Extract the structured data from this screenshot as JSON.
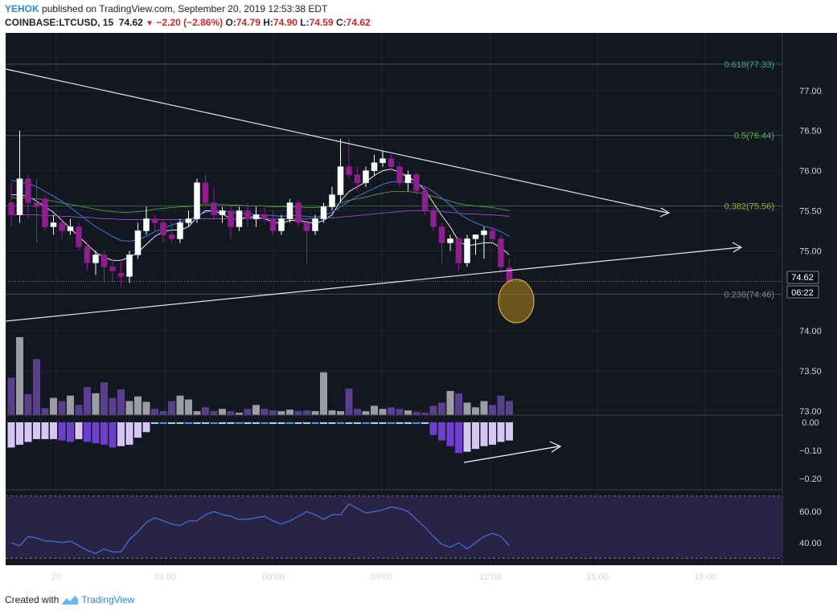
{
  "header": {
    "author": "YEHOK",
    "published_text": "published on TradingView.com, September 20, 2019 12:53:38 EDT",
    "symbol": "COINBASE:LTCUSD, 15",
    "last": "74.62",
    "change": "−2.20 (−2.86%)",
    "o_label": "O:",
    "o_value": "74.79",
    "h_label": "H:",
    "h_value": "74.90",
    "l_label": "L:",
    "l_value": "74.59",
    "c_label": "C:",
    "c_value": "74.62"
  },
  "footer": {
    "created_with": "Created with",
    "brand": "TradingView"
  },
  "colors": {
    "background": "#131722",
    "candle_up": "#ffffff",
    "candle_down": "#8e1f8c",
    "volume_up": "#9c9ca4",
    "volume_down": "#5a3f8c",
    "macd_pos": "#3d9aff",
    "macd_pos_light": "#a8d2ff",
    "macd_neg": "#6d3fcf",
    "macd_neg_light": "#d6c8f2",
    "rsi_line": "#3d78d8",
    "rsi_band": "#2b2248",
    "fib_line": "#3c5a44",
    "fib_0618": "#3fa58a",
    "fib_05": "#56b548",
    "fib_0382": "#98b030",
    "fib_0236": "#858585",
    "highlight": "#e0a93a"
  },
  "chart_data": {
    "type": "candlestick",
    "price_axis": {
      "ticks": [
        "77.00",
        "76.50",
        "76.00",
        "75.50",
        "75.00",
        "74.00",
        "73.50",
        "73.00"
      ],
      "range": [
        72.95,
        77.72
      ]
    },
    "time_axis": [
      "20",
      "03:00",
      "06:00",
      "09:00",
      "12:00",
      "15:00",
      "18:00"
    ],
    "last_price_label": "74.62",
    "countdown_label": "06:22",
    "fib_levels": [
      {
        "label": "0.618(77.33)",
        "value": 77.33,
        "color_key": "fib_0618"
      },
      {
        "label": "0.5(76.44)",
        "value": 76.44,
        "color_key": "fib_05"
      },
      {
        "label": "0.382(75.56)",
        "value": 75.56,
        "color_key": "fib_0382"
      },
      {
        "label": "0.236(74.46)",
        "value": 74.46,
        "color_key": "fib_0236"
      }
    ],
    "candles": [
      {
        "o": 75.6,
        "h": 75.85,
        "l": 75.3,
        "c": 75.45
      },
      {
        "o": 75.45,
        "h": 76.5,
        "l": 75.35,
        "c": 75.9
      },
      {
        "o": 75.9,
        "h": 75.95,
        "l": 75.4,
        "c": 75.6
      },
      {
        "o": 75.6,
        "h": 75.9,
        "l": 75.1,
        "c": 75.55
      },
      {
        "o": 75.65,
        "h": 75.7,
        "l": 75.25,
        "c": 75.3
      },
      {
        "o": 75.3,
        "h": 75.45,
        "l": 75.2,
        "c": 75.35
      },
      {
        "o": 75.35,
        "h": 75.4,
        "l": 75.15,
        "c": 75.25
      },
      {
        "o": 75.25,
        "h": 75.4,
        "l": 75.2,
        "c": 75.3
      },
      {
        "o": 75.3,
        "h": 75.35,
        "l": 75.0,
        "c": 75.05
      },
      {
        "o": 75.05,
        "h": 75.1,
        "l": 74.75,
        "c": 74.85
      },
      {
        "o": 74.85,
        "h": 75.0,
        "l": 74.7,
        "c": 74.95
      },
      {
        "o": 74.95,
        "h": 75.0,
        "l": 74.6,
        "c": 74.8
      },
      {
        "o": 74.8,
        "h": 74.9,
        "l": 74.6,
        "c": 74.75
      },
      {
        "o": 74.72,
        "h": 74.9,
        "l": 74.55,
        "c": 74.68
      },
      {
        "o": 74.68,
        "h": 75.0,
        "l": 74.6,
        "c": 74.95
      },
      {
        "o": 74.95,
        "h": 75.35,
        "l": 74.9,
        "c": 75.25
      },
      {
        "o": 75.25,
        "h": 75.55,
        "l": 75.2,
        "c": 75.4
      },
      {
        "o": 75.4,
        "h": 75.45,
        "l": 75.25,
        "c": 75.35
      },
      {
        "o": 75.35,
        "h": 75.4,
        "l": 75.1,
        "c": 75.2
      },
      {
        "o": 75.2,
        "h": 75.35,
        "l": 75.1,
        "c": 75.15
      },
      {
        "o": 75.15,
        "h": 75.4,
        "l": 75.1,
        "c": 75.35
      },
      {
        "o": 75.35,
        "h": 75.5,
        "l": 75.3,
        "c": 75.4
      },
      {
        "o": 75.4,
        "h": 75.9,
        "l": 75.35,
        "c": 75.85
      },
      {
        "o": 75.85,
        "h": 75.95,
        "l": 75.55,
        "c": 75.6
      },
      {
        "o": 75.6,
        "h": 75.8,
        "l": 75.4,
        "c": 75.45
      },
      {
        "o": 75.45,
        "h": 75.55,
        "l": 75.35,
        "c": 75.5
      },
      {
        "o": 75.5,
        "h": 75.55,
        "l": 75.15,
        "c": 75.3
      },
      {
        "o": 75.3,
        "h": 75.55,
        "l": 75.25,
        "c": 75.5
      },
      {
        "o": 75.5,
        "h": 75.6,
        "l": 75.3,
        "c": 75.4
      },
      {
        "o": 75.4,
        "h": 75.55,
        "l": 75.3,
        "c": 75.45
      },
      {
        "o": 75.45,
        "h": 75.55,
        "l": 75.35,
        "c": 75.4
      },
      {
        "o": 75.4,
        "h": 75.5,
        "l": 75.2,
        "c": 75.25
      },
      {
        "o": 75.25,
        "h": 75.45,
        "l": 75.2,
        "c": 75.4
      },
      {
        "o": 75.4,
        "h": 75.65,
        "l": 75.35,
        "c": 75.6
      },
      {
        "o": 75.6,
        "h": 75.65,
        "l": 75.3,
        "c": 75.35
      },
      {
        "o": 75.35,
        "h": 75.4,
        "l": 74.85,
        "c": 75.25
      },
      {
        "o": 75.25,
        "h": 75.45,
        "l": 75.2,
        "c": 75.4
      },
      {
        "o": 75.4,
        "h": 75.6,
        "l": 75.35,
        "c": 75.55
      },
      {
        "o": 75.55,
        "h": 75.8,
        "l": 75.5,
        "c": 75.7
      },
      {
        "o": 75.7,
        "h": 76.4,
        "l": 75.6,
        "c": 76.05
      },
      {
        "o": 76.05,
        "h": 76.4,
        "l": 75.9,
        "c": 75.95
      },
      {
        "o": 75.95,
        "h": 76.05,
        "l": 75.75,
        "c": 75.85
      },
      {
        "o": 75.85,
        "h": 76.05,
        "l": 75.8,
        "c": 76.0
      },
      {
        "o": 76.0,
        "h": 76.2,
        "l": 75.95,
        "c": 76.1
      },
      {
        "o": 76.1,
        "h": 76.25,
        "l": 76.05,
        "c": 76.15
      },
      {
        "o": 76.15,
        "h": 76.2,
        "l": 76.0,
        "c": 76.05
      },
      {
        "o": 76.05,
        "h": 76.1,
        "l": 75.8,
        "c": 75.85
      },
      {
        "o": 75.85,
        "h": 76.0,
        "l": 75.75,
        "c": 75.95
      },
      {
        "o": 75.95,
        "h": 75.98,
        "l": 75.7,
        "c": 75.75
      },
      {
        "o": 75.75,
        "h": 75.8,
        "l": 75.45,
        "c": 75.5
      },
      {
        "o": 75.5,
        "h": 75.55,
        "l": 75.25,
        "c": 75.3
      },
      {
        "o": 75.3,
        "h": 75.35,
        "l": 74.85,
        "c": 75.1
      },
      {
        "o": 75.1,
        "h": 75.2,
        "l": 75.0,
        "c": 75.15
      },
      {
        "o": 75.15,
        "h": 75.18,
        "l": 74.75,
        "c": 74.85
      },
      {
        "o": 74.85,
        "h": 75.2,
        "l": 74.8,
        "c": 75.15
      },
      {
        "o": 75.15,
        "h": 75.2,
        "l": 74.95,
        "c": 75.2
      },
      {
        "o": 75.2,
        "h": 75.3,
        "l": 74.9,
        "c": 75.25
      },
      {
        "o": 75.25,
        "h": 75.3,
        "l": 75.1,
        "c": 75.15
      },
      {
        "o": 75.15,
        "h": 75.2,
        "l": 74.75,
        "c": 74.8
      },
      {
        "o": 74.79,
        "h": 74.9,
        "l": 74.59,
        "c": 74.62
      }
    ],
    "moving_averages": [
      {
        "color": "#e8e8e8",
        "values": [
          75.7,
          75.7,
          75.68,
          75.62,
          75.55,
          75.48,
          75.38,
          75.28,
          75.18,
          75.08,
          74.98,
          74.92,
          74.88,
          74.88,
          74.92,
          74.98,
          75.08,
          75.18,
          75.24,
          75.26,
          75.26,
          75.3,
          75.42,
          75.5,
          75.5,
          75.46,
          75.4,
          75.4,
          75.42,
          75.42,
          75.4,
          75.36,
          75.34,
          75.38,
          75.38,
          75.36,
          75.34,
          75.38,
          75.45,
          75.62,
          75.74,
          75.8,
          75.86,
          75.94,
          76.0,
          76.02,
          75.98,
          75.92,
          75.86,
          75.76,
          75.6,
          75.44,
          75.3,
          75.12,
          75.06,
          75.08,
          75.1,
          75.1,
          75.04,
          74.95
        ]
      },
      {
        "color": "#3d78d8",
        "values": [
          75.88,
          75.86,
          75.84,
          75.8,
          75.74,
          75.68,
          75.62,
          75.54,
          75.46,
          75.38,
          75.3,
          75.24,
          75.18,
          75.13,
          75.12,
          75.14,
          75.18,
          75.24,
          75.28,
          75.32,
          75.36,
          75.38,
          75.44,
          75.48,
          75.5,
          75.5,
          75.48,
          75.47,
          75.46,
          75.45,
          75.45,
          75.44,
          75.43,
          75.44,
          75.44,
          75.43,
          75.42,
          75.44,
          75.48,
          75.55,
          75.62,
          75.68,
          75.73,
          75.78,
          75.83,
          75.86,
          75.87,
          75.86,
          75.84,
          75.8,
          75.74,
          75.66,
          75.57,
          75.47,
          75.4,
          75.35,
          75.31,
          75.28,
          75.24,
          75.18
        ]
      },
      {
        "color": "#4e8e4a",
        "values": [
          75.66,
          75.66,
          75.66,
          75.65,
          75.64,
          75.62,
          75.6,
          75.58,
          75.56,
          75.54,
          75.52,
          75.5,
          75.49,
          75.48,
          75.48,
          75.49,
          75.5,
          75.52,
          75.53,
          75.54,
          75.55,
          75.55,
          75.57,
          75.58,
          75.58,
          75.58,
          75.57,
          75.57,
          75.56,
          75.56,
          75.56,
          75.55,
          75.55,
          75.55,
          75.55,
          75.54,
          75.54,
          75.55,
          75.56,
          75.6,
          75.63,
          75.65,
          75.67,
          75.7,
          75.72,
          75.74,
          75.74,
          75.74,
          75.73,
          75.71,
          75.68,
          75.65,
          75.62,
          75.59,
          75.57,
          75.56,
          75.55,
          75.54,
          75.52,
          75.5
        ]
      },
      {
        "color": "#8a4ab0",
        "values": [
          75.45,
          75.45,
          75.45,
          75.45,
          75.44,
          75.44,
          75.43,
          75.43,
          75.42,
          75.42,
          75.41,
          75.4,
          75.4,
          75.39,
          75.39,
          75.39,
          75.39,
          75.39,
          75.39,
          75.39,
          75.39,
          75.39,
          75.4,
          75.4,
          75.4,
          75.4,
          75.4,
          75.4,
          75.4,
          75.4,
          75.4,
          75.4,
          75.4,
          75.4,
          75.4,
          75.4,
          75.4,
          75.41,
          75.41,
          75.42,
          75.43,
          75.44,
          75.45,
          75.46,
          75.47,
          75.48,
          75.49,
          75.5,
          75.5,
          75.5,
          75.5,
          75.49,
          75.48,
          75.47,
          75.46,
          75.46,
          75.45,
          75.45,
          75.44,
          75.43
        ]
      }
    ],
    "volume": [
      0.48,
      1.0,
      0.27,
      0.72,
      0.09,
      0.22,
      0.18,
      0.25,
      0.13,
      0.36,
      0.28,
      0.42,
      0.22,
      0.33,
      0.18,
      0.24,
      0.17,
      0.08,
      0.05,
      0.18,
      0.25,
      0.2,
      0.05,
      0.1,
      0.05,
      0.08,
      0.05,
      0.03,
      0.08,
      0.13,
      0.08,
      0.06,
      0.05,
      0.07,
      0.05,
      0.06,
      0.05,
      0.55,
      0.06,
      0.05,
      0.34,
      0.08,
      0.05,
      0.12,
      0.08,
      0.1,
      0.08,
      0.06,
      0.04,
      0.03,
      0.12,
      0.16,
      0.31,
      0.28,
      0.16,
      0.1,
      0.18,
      0.13,
      0.25,
      0.18
    ],
    "macd_axis": {
      "ticks": [
        "0.00",
        "−0.10",
        "−0.20"
      ],
      "range": [
        -0.235,
        0.02
      ]
    },
    "macd_histogram": [
      -0.09,
      -0.08,
      -0.07,
      -0.06,
      -0.06,
      -0.06,
      -0.065,
      -0.07,
      -0.06,
      -0.07,
      -0.075,
      -0.08,
      -0.09,
      -0.085,
      -0.08,
      -0.055,
      -0.035,
      -0.025,
      -0.025,
      -0.025,
      -0.025,
      -0.025,
      -0.025,
      -0.025,
      -0.025,
      -0.025,
      -0.025,
      -0.025,
      -0.025,
      -0.025,
      -0.025,
      -0.025,
      -0.025,
      -0.025,
      -0.025,
      -0.025,
      -0.025,
      -0.025,
      -0.025,
      -0.025,
      -0.025,
      -0.025,
      -0.025,
      -0.025,
      -0.025,
      -0.025,
      -0.025,
      -0.025,
      -0.025,
      -0.025,
      -0.045,
      -0.065,
      -0.085,
      -0.11,
      -0.105,
      -0.095,
      -0.085,
      -0.08,
      -0.07,
      -0.065
    ],
    "rsi_axis": {
      "ticks": [
        "60.00",
        "40.00"
      ],
      "range": [
        26,
        73
      ],
      "upper_band": 70,
      "lower_band": 30
    },
    "rsi": [
      40,
      38,
      44,
      43,
      41,
      41,
      40,
      41,
      38,
      35,
      33,
      36,
      34,
      34,
      42,
      47,
      53,
      56,
      54,
      52,
      51,
      54,
      54,
      58,
      60,
      58,
      57,
      55,
      55,
      56,
      57,
      54,
      52,
      54,
      57,
      60,
      58,
      55,
      58,
      58,
      65,
      62,
      59,
      60,
      61,
      63,
      62,
      60,
      55,
      50,
      44,
      39,
      37,
      40,
      36,
      40,
      44,
      46,
      44,
      38
    ]
  }
}
